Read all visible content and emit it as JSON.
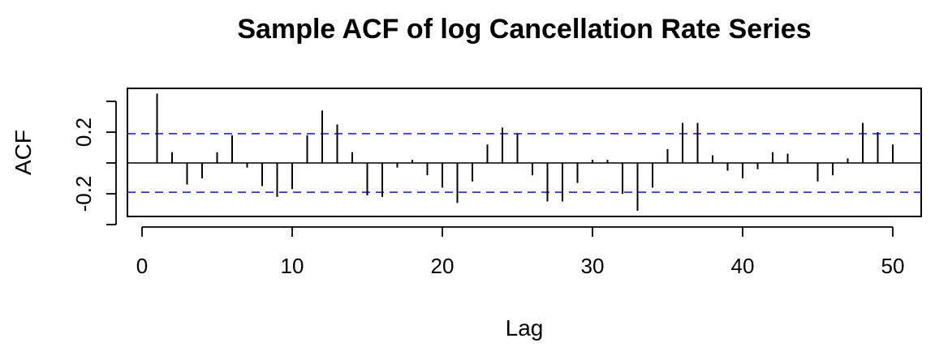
{
  "chart_data": {
    "type": "bar",
    "title": "Sample ACF of log Cancellation Rate Series",
    "xlabel": "Lag",
    "ylabel": "ACF",
    "xlim": [
      0,
      50
    ],
    "ylim": [
      -0.32,
      0.48
    ],
    "x_ticks": [
      0,
      10,
      20,
      30,
      40,
      50
    ],
    "x_tick_labels": [
      "0",
      "10",
      "20",
      "30",
      "40",
      "50"
    ],
    "y_ticks": [
      -0.2,
      0.2
    ],
    "y_tick_labels": [
      "-0.2",
      "0.2"
    ],
    "y_extra_ticks": [
      -0.4,
      0.0,
      0.4
    ],
    "confidence_bound": 0.19,
    "confidence_color": "#3333ee",
    "bar_color": "#000000",
    "grid": false,
    "lags": [
      1,
      2,
      3,
      4,
      5,
      6,
      7,
      8,
      9,
      10,
      11,
      12,
      13,
      14,
      15,
      16,
      17,
      18,
      19,
      20,
      21,
      22,
      23,
      24,
      25,
      26,
      27,
      28,
      29,
      30,
      31,
      32,
      33,
      34,
      35,
      36,
      37,
      38,
      39,
      40,
      41,
      42,
      43,
      44,
      45,
      46,
      47,
      48,
      49,
      50
    ],
    "values": [
      0.45,
      0.07,
      -0.14,
      -0.1,
      0.07,
      0.18,
      -0.03,
      -0.15,
      -0.22,
      -0.17,
      0.18,
      0.34,
      0.25,
      0.07,
      -0.21,
      -0.22,
      -0.03,
      0.02,
      -0.08,
      -0.16,
      -0.26,
      -0.12,
      0.12,
      0.23,
      0.19,
      -0.08,
      -0.25,
      -0.25,
      -0.13,
      0.02,
      0.02,
      -0.2,
      -0.31,
      -0.16,
      0.09,
      0.26,
      0.26,
      0.05,
      -0.05,
      -0.1,
      -0.04,
      0.07,
      0.06,
      0.0,
      -0.12,
      -0.08,
      0.03,
      0.26,
      0.2,
      0.12
    ]
  }
}
